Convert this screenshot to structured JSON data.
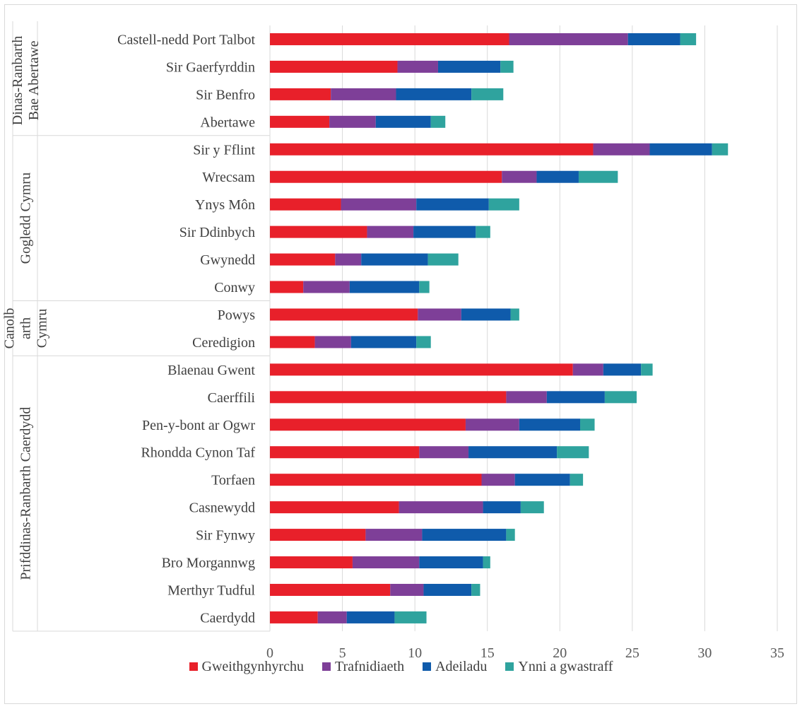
{
  "chart_data": {
    "type": "bar",
    "orientation": "horizontal",
    "stacked": true,
    "categories": [
      "Castell-nedd Port Talbot",
      "Sir Gaerfyrddin",
      "Sir Benfro",
      "Abertawe",
      "Sir y Fflint",
      "Wrecsam",
      "Ynys Môn",
      "Sir Ddinbych",
      "Gwynedd",
      "Conwy",
      "Powys",
      "Ceredigion",
      "Blaenau Gwent",
      "Caerffili",
      "Pen-y-bont ar Ogwr",
      "Rhondda Cynon Taf",
      "Torfaen",
      "Casnewydd",
      "Sir Fynwy",
      "Bro Morgannwg",
      "Merthyr Tudful",
      "Caerdydd"
    ],
    "groups": [
      {
        "name": "Dinas-Ranbarth Bae Abertawe",
        "lines": [
          "Dinas-Ranbarth",
          "Bae Abertawe"
        ],
        "first": 0,
        "last": 3
      },
      {
        "name": "Gogledd Cymru",
        "lines": [
          "Gogledd Cymru"
        ],
        "first": 4,
        "last": 9
      },
      {
        "name": "Canolbarth Cymru",
        "lines": [
          "Canolb",
          "arth",
          "Cymru"
        ],
        "first": 10,
        "last": 11
      },
      {
        "name": "Prifddinas-Ranbarth Caerdydd",
        "lines": [
          "Prifddinas-Ranbarth Caerdydd"
        ],
        "first": 12,
        "last": 21
      }
    ],
    "series": [
      {
        "name": "Gweithgynhyrchu",
        "color": "#e8202a",
        "values": [
          16.5,
          8.8,
          4.2,
          4.1,
          22.3,
          16.0,
          4.9,
          6.7,
          4.5,
          2.3,
          10.2,
          3.1,
          20.9,
          16.3,
          13.5,
          10.3,
          14.6,
          8.9,
          6.6,
          5.7,
          8.3,
          3.3
        ]
      },
      {
        "name": "Trafnidiaeth",
        "color": "#7e3f98",
        "values": [
          8.2,
          2.8,
          4.5,
          3.2,
          3.9,
          2.4,
          5.2,
          3.2,
          1.8,
          3.2,
          3.0,
          2.5,
          2.1,
          2.8,
          3.7,
          3.4,
          2.3,
          5.8,
          3.9,
          4.6,
          2.3,
          2.0
        ]
      },
      {
        "name": "Adeiladu",
        "color": "#0f5bab",
        "values": [
          3.6,
          4.3,
          5.2,
          3.8,
          4.3,
          2.9,
          5.0,
          4.3,
          4.6,
          4.8,
          3.4,
          4.5,
          2.6,
          4.0,
          4.2,
          6.1,
          3.8,
          2.6,
          5.8,
          4.4,
          3.3,
          3.3
        ]
      },
      {
        "name": "Ynni a gwastraff",
        "color": "#2fa39e",
        "values": [
          1.1,
          0.9,
          2.2,
          1.0,
          1.1,
          2.7,
          2.1,
          1.0,
          2.1,
          0.7,
          0.6,
          1.0,
          0.8,
          2.2,
          1.0,
          2.2,
          0.9,
          1.6,
          0.6,
          0.5,
          0.6,
          2.2
        ]
      }
    ],
    "xlim": [
      0,
      35
    ],
    "xticks": [
      0,
      5,
      10,
      15,
      20,
      25,
      30,
      35
    ],
    "grid": true,
    "legend_position": "bottom"
  }
}
